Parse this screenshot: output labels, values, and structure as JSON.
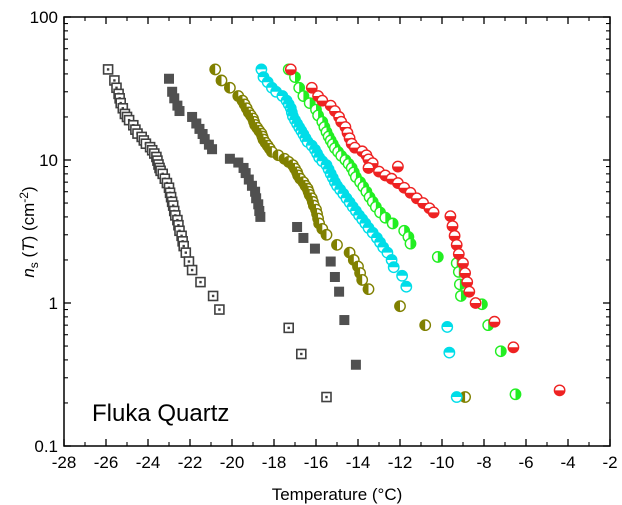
{
  "chart_data": {
    "type": "scatter",
    "title": "",
    "xlabel": "Temperature (°C)",
    "ylabel": {
      "main": "n",
      "sub": "s",
      "mid": " (",
      "italic": "T",
      "tail": ") (cm",
      "sup": "-2",
      "end": ")"
    },
    "xlim": [
      -28,
      -2
    ],
    "ylim": [
      0.1,
      100
    ],
    "yscale": "log",
    "xticks": [
      "-28",
      "-26",
      "-24",
      "-22",
      "-20",
      "-18",
      "-16",
      "-14",
      "-12",
      "-10",
      "-8",
      "-6",
      "-4",
      "-2"
    ],
    "xtick_values": [
      -28,
      -26,
      -24,
      -22,
      -20,
      -18,
      -16,
      -14,
      -12,
      -10,
      -8,
      -6,
      -4,
      -2
    ],
    "yticks": [
      "0.1",
      "1",
      "10",
      "100"
    ],
    "ytick_values": [
      0.1,
      1,
      10,
      100
    ],
    "annotation": "Fluka Quartz",
    "grid": false,
    "series": [
      {
        "marker": "square-dot",
        "color": "#404040",
        "points": [
          [
            -25.9,
            43
          ],
          [
            -25.6,
            36
          ],
          [
            -25.5,
            32
          ],
          [
            -25.4,
            29
          ],
          [
            -25.35,
            27
          ],
          [
            -25.3,
            25
          ],
          [
            -25.2,
            23
          ],
          [
            -25.1,
            21
          ],
          [
            -25.0,
            20
          ],
          [
            -24.9,
            19
          ],
          [
            -24.7,
            17.5
          ],
          [
            -24.6,
            16.3
          ],
          [
            -24.5,
            15.3
          ],
          [
            -24.3,
            14.5
          ],
          [
            -24.2,
            13.7
          ],
          [
            -24.1,
            13.0
          ],
          [
            -23.9,
            12.3
          ],
          [
            -23.8,
            11.7
          ],
          [
            -23.7,
            11.1
          ],
          [
            -23.6,
            10.5
          ],
          [
            -23.55,
            9.9
          ],
          [
            -23.5,
            9.3
          ],
          [
            -23.45,
            8.8
          ],
          [
            -23.4,
            8.4
          ],
          [
            -23.3,
            8.0
          ],
          [
            -23.2,
            7.4
          ],
          [
            -23.1,
            6.9
          ],
          [
            -23.0,
            6.4
          ],
          [
            -22.95,
            5.9
          ],
          [
            -22.9,
            5.5
          ],
          [
            -22.85,
            5.1
          ],
          [
            -22.8,
            4.8
          ],
          [
            -22.75,
            4.4
          ],
          [
            -22.7,
            4.1
          ],
          [
            -22.6,
            3.8
          ],
          [
            -22.55,
            3.5
          ],
          [
            -22.5,
            3.2
          ],
          [
            -22.4,
            2.95
          ],
          [
            -22.35,
            2.7
          ],
          [
            -22.3,
            2.5
          ],
          [
            -22.2,
            2.25
          ],
          [
            -22.05,
            1.95
          ],
          [
            -21.9,
            1.7
          ],
          [
            -21.5,
            1.4
          ],
          [
            -20.9,
            1.12
          ],
          [
            -20.6,
            0.9
          ],
          [
            -17.3,
            0.67
          ],
          [
            -16.7,
            0.44
          ],
          [
            -15.5,
            0.22
          ]
        ]
      },
      {
        "marker": "square",
        "color": "#505050",
        "points": [
          [
            -23.0,
            37
          ],
          [
            -22.85,
            30
          ],
          [
            -22.75,
            27
          ],
          [
            -22.6,
            24
          ],
          [
            -22.5,
            22
          ],
          [
            -21.9,
            20
          ],
          [
            -21.7,
            18
          ],
          [
            -21.55,
            16.5
          ],
          [
            -21.4,
            15.2
          ],
          [
            -21.3,
            14.0
          ],
          [
            -21.1,
            12.8
          ],
          [
            -20.95,
            11.9
          ],
          [
            -20.1,
            10.2
          ],
          [
            -19.7,
            9.6
          ],
          [
            -19.45,
            8.8
          ],
          [
            -19.35,
            8.1
          ],
          [
            -19.2,
            7.3
          ],
          [
            -19.05,
            6.6
          ],
          [
            -18.9,
            6.0
          ],
          [
            -18.85,
            5.4
          ],
          [
            -18.75,
            4.9
          ],
          [
            -18.7,
            4.4
          ],
          [
            -18.65,
            4.0
          ],
          [
            -16.9,
            3.4
          ],
          [
            -16.6,
            2.85
          ],
          [
            -16.05,
            2.4
          ],
          [
            -15.3,
            1.95
          ],
          [
            -15.1,
            1.52
          ],
          [
            -14.9,
            1.2
          ],
          [
            -14.65,
            0.76
          ],
          [
            -14.1,
            0.37
          ]
        ]
      },
      {
        "marker": "half-left",
        "color": "#808000",
        "points": [
          [
            -20.8,
            43
          ],
          [
            -20.5,
            36
          ],
          [
            -20.1,
            32
          ],
          [
            -19.7,
            28
          ],
          [
            -19.5,
            26
          ],
          [
            -19.4,
            24.5
          ],
          [
            -19.3,
            23
          ],
          [
            -19.2,
            21.5
          ],
          [
            -19.1,
            20.5
          ],
          [
            -19.0,
            19.5
          ],
          [
            -18.95,
            18.5
          ],
          [
            -18.9,
            17.6
          ],
          [
            -18.8,
            16.8
          ],
          [
            -18.7,
            16.0
          ],
          [
            -18.6,
            15.3
          ],
          [
            -18.55,
            14.6
          ],
          [
            -18.5,
            13.9
          ],
          [
            -18.4,
            13.2
          ],
          [
            -18.3,
            12.6
          ],
          [
            -18.2,
            12.0
          ],
          [
            -18.1,
            11.4
          ],
          [
            -17.8,
            10.8
          ],
          [
            -17.5,
            10.2
          ],
          [
            -17.3,
            9.7
          ],
          [
            -17.1,
            9.2
          ],
          [
            -17.0,
            8.7
          ],
          [
            -16.9,
            8.2
          ],
          [
            -16.85,
            7.8
          ],
          [
            -16.75,
            7.4
          ],
          [
            -16.6,
            7.0
          ],
          [
            -16.5,
            6.6
          ],
          [
            -16.4,
            6.3
          ],
          [
            -16.35,
            6.0
          ],
          [
            -16.3,
            5.7
          ],
          [
            -16.2,
            5.4
          ],
          [
            -16.15,
            5.1
          ],
          [
            -16.1,
            4.8
          ],
          [
            -16.0,
            4.5
          ],
          [
            -15.95,
            4.2
          ],
          [
            -15.9,
            3.9
          ],
          [
            -15.85,
            3.6
          ],
          [
            -15.7,
            3.3
          ],
          [
            -15.5,
            3.0
          ],
          [
            -15.0,
            2.55
          ],
          [
            -14.4,
            2.25
          ],
          [
            -14.2,
            2.0
          ],
          [
            -14.0,
            1.8
          ],
          [
            -13.9,
            1.62
          ],
          [
            -13.8,
            1.45
          ],
          [
            -13.5,
            1.25
          ],
          [
            -12.0,
            0.95
          ],
          [
            -10.8,
            0.7
          ],
          [
            -8.9,
            0.22
          ]
        ]
      },
      {
        "marker": "half-top",
        "color": "#00dde8",
        "points": [
          [
            -18.6,
            43
          ],
          [
            -18.5,
            38
          ],
          [
            -18.3,
            35
          ],
          [
            -18.1,
            32
          ],
          [
            -17.9,
            30
          ],
          [
            -17.6,
            28
          ],
          [
            -17.4,
            26
          ],
          [
            -17.3,
            24.5
          ],
          [
            -17.2,
            23
          ],
          [
            -17.15,
            21.5
          ],
          [
            -17.1,
            20.2
          ],
          [
            -17.0,
            19.0
          ],
          [
            -16.9,
            17.9
          ],
          [
            -16.8,
            16.9
          ],
          [
            -16.7,
            16.0
          ],
          [
            -16.6,
            15.1
          ],
          [
            -16.5,
            14.2
          ],
          [
            -16.4,
            13.4
          ],
          [
            -16.2,
            12.6
          ],
          [
            -16.05,
            11.8
          ],
          [
            -15.95,
            11.1
          ],
          [
            -15.85,
            10.4
          ],
          [
            -15.7,
            9.8
          ],
          [
            -15.5,
            9.2
          ],
          [
            -15.4,
            8.6
          ],
          [
            -15.3,
            8.0
          ],
          [
            -15.2,
            7.5
          ],
          [
            -15.1,
            7.0
          ],
          [
            -15.0,
            6.6
          ],
          [
            -14.85,
            6.2
          ],
          [
            -14.7,
            5.8
          ],
          [
            -14.55,
            5.4
          ],
          [
            -14.4,
            5.05
          ],
          [
            -14.25,
            4.7
          ],
          [
            -14.1,
            4.4
          ],
          [
            -13.95,
            4.1
          ],
          [
            -13.8,
            3.85
          ],
          [
            -13.65,
            3.6
          ],
          [
            -13.5,
            3.35
          ],
          [
            -13.3,
            3.1
          ],
          [
            -13.1,
            2.85
          ],
          [
            -12.95,
            2.65
          ],
          [
            -12.8,
            2.45
          ],
          [
            -12.6,
            2.25
          ],
          [
            -12.4,
            2.0
          ],
          [
            -12.3,
            1.78
          ],
          [
            -11.9,
            1.55
          ],
          [
            -11.7,
            1.3
          ],
          [
            -9.75,
            0.68
          ],
          [
            -9.65,
            0.45
          ],
          [
            -9.3,
            0.22
          ]
        ]
      },
      {
        "marker": "half-right",
        "color": "#22ee22",
        "points": [
          [
            -17.3,
            43
          ],
          [
            -17.0,
            38
          ],
          [
            -16.8,
            32
          ],
          [
            -16.6,
            28
          ],
          [
            -16.3,
            25
          ],
          [
            -16.0,
            22.5
          ],
          [
            -15.9,
            20.5
          ],
          [
            -15.7,
            18.5
          ],
          [
            -15.6,
            17
          ],
          [
            -15.5,
            15.7
          ],
          [
            -15.4,
            14.6
          ],
          [
            -15.3,
            13.7
          ],
          [
            -15.2,
            12.9
          ],
          [
            -15.1,
            12.1
          ],
          [
            -14.95,
            11.4
          ],
          [
            -14.8,
            10.7
          ],
          [
            -14.6,
            10.0
          ],
          [
            -14.45,
            9.4
          ],
          [
            -14.3,
            8.8
          ],
          [
            -14.2,
            8.2
          ],
          [
            -14.1,
            7.6
          ],
          [
            -13.9,
            7.0
          ],
          [
            -13.75,
            6.5
          ],
          [
            -13.6,
            6.0
          ],
          [
            -13.45,
            5.5
          ],
          [
            -13.3,
            5.1
          ],
          [
            -13.15,
            4.7
          ],
          [
            -12.95,
            4.3
          ],
          [
            -12.7,
            3.95
          ],
          [
            -12.35,
            3.6
          ],
          [
            -11.8,
            3.2
          ],
          [
            -11.6,
            2.9
          ],
          [
            -11.5,
            2.6
          ],
          [
            -10.2,
            2.1
          ],
          [
            -9.3,
            1.9
          ],
          [
            -9.2,
            1.65
          ],
          [
            -9.15,
            1.35
          ],
          [
            -9.1,
            1.12
          ],
          [
            -8.1,
            0.98
          ],
          [
            -7.8,
            0.7
          ],
          [
            -7.2,
            0.46
          ],
          [
            -6.5,
            0.23
          ]
        ]
      },
      {
        "marker": "half-bottom",
        "color": "#ee2222",
        "points": [
          [
            -17.2,
            43
          ],
          [
            -16.2,
            32
          ],
          [
            -15.9,
            28
          ],
          [
            -15.7,
            26
          ],
          [
            -15.3,
            24
          ],
          [
            -15.1,
            22
          ],
          [
            -14.9,
            20
          ],
          [
            -14.8,
            18.5
          ],
          [
            -14.6,
            17
          ],
          [
            -14.5,
            15.5
          ],
          [
            -14.4,
            14.2
          ],
          [
            -14.3,
            13
          ],
          [
            -14.15,
            12.2
          ],
          [
            -13.8,
            11.5
          ],
          [
            -13.6,
            10.8
          ],
          [
            -13.5,
            10.1
          ],
          [
            -13.3,
            9.5
          ],
          [
            -12.1,
            9.0
          ],
          [
            -13.5,
            8.8
          ],
          [
            -13.0,
            8.3
          ],
          [
            -12.7,
            7.8
          ],
          [
            -12.4,
            7.4
          ],
          [
            -12.1,
            6.9
          ],
          [
            -11.8,
            6.4
          ],
          [
            -11.5,
            5.9
          ],
          [
            -11.2,
            5.4
          ],
          [
            -10.9,
            5.0
          ],
          [
            -10.6,
            4.6
          ],
          [
            -10.4,
            4.3
          ],
          [
            -9.6,
            4.05
          ],
          [
            -9.5,
            3.45
          ],
          [
            -9.4,
            2.95
          ],
          [
            -9.3,
            2.55
          ],
          [
            -9.2,
            2.2
          ],
          [
            -9.0,
            1.9
          ],
          [
            -8.9,
            1.62
          ],
          [
            -8.8,
            1.4
          ],
          [
            -8.7,
            1.2
          ],
          [
            -8.4,
            1.0
          ],
          [
            -7.5,
            0.74
          ],
          [
            -6.6,
            0.49
          ],
          [
            -4.4,
            0.245
          ]
        ]
      }
    ]
  }
}
